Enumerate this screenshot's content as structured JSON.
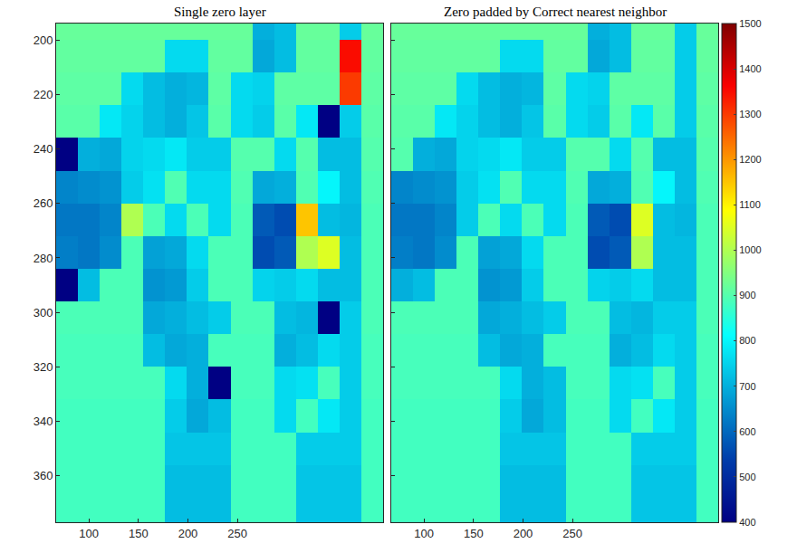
{
  "chart_data": [
    {
      "type": "heatmap",
      "title": "Single zero layer",
      "x": [
        78,
        100,
        122,
        144,
        166,
        188,
        210,
        232,
        254,
        276,
        298,
        320,
        342,
        364,
        386
      ],
      "y": [
        194,
        206,
        218,
        230,
        242,
        254,
        266,
        278,
        290,
        302,
        314,
        326,
        338,
        350,
        362,
        374
      ],
      "z": [
        [
          920,
          920,
          920,
          920,
          920,
          920,
          920,
          920,
          920,
          700,
          720,
          920,
          920,
          740,
          920
        ],
        [
          915,
          915,
          915,
          915,
          915,
          760,
          760,
          915,
          915,
          690,
          720,
          915,
          915,
          1350,
          915
        ],
        [
          910,
          910,
          910,
          760,
          720,
          700,
          710,
          910,
          760,
          750,
          910,
          910,
          910,
          1300,
          910
        ],
        [
          905,
          905,
          780,
          750,
          720,
          700,
          730,
          905,
          760,
          740,
          905,
          780,
          400,
          740,
          905
        ],
        [
          400,
          700,
          690,
          750,
          760,
          780,
          740,
          740,
          900,
          900,
          760,
          900,
          720,
          720,
          900
        ],
        [
          640,
          650,
          660,
          740,
          770,
          895,
          760,
          760,
          895,
          690,
          700,
          895,
          800,
          720,
          895
        ],
        [
          620,
          620,
          640,
          1000,
          890,
          760,
          890,
          760,
          890,
          580,
          560,
          1150,
          720,
          710,
          890
        ],
        [
          630,
          620,
          650,
          890,
          680,
          690,
          760,
          890,
          890,
          560,
          580,
          1000,
          1050,
          720,
          890
        ],
        [
          400,
          720,
          890,
          890,
          660,
          670,
          740,
          890,
          890,
          750,
          740,
          760,
          720,
          720,
          890
        ],
        [
          890,
          890,
          890,
          890,
          690,
          700,
          720,
          740,
          890,
          890,
          720,
          710,
          400,
          740,
          890
        ],
        [
          885,
          885,
          885,
          885,
          720,
          690,
          700,
          885,
          885,
          885,
          700,
          720,
          760,
          740,
          885
        ],
        [
          885,
          885,
          885,
          885,
          885,
          760,
          700,
          400,
          885,
          885,
          760,
          770,
          885,
          740,
          885
        ],
        [
          880,
          880,
          880,
          880,
          880,
          740,
          690,
          720,
          880,
          880,
          760,
          880,
          780,
          740,
          880
        ],
        [
          880,
          880,
          880,
          880,
          880,
          730,
          730,
          730,
          880,
          880,
          880,
          740,
          740,
          740,
          880
        ],
        [
          880,
          880,
          880,
          880,
          880,
          720,
          720,
          720,
          880,
          880,
          880,
          730,
          730,
          730,
          880
        ],
        [
          880,
          880,
          880,
          880,
          880,
          720,
          720,
          720,
          880,
          880,
          880,
          730,
          730,
          730,
          880
        ]
      ],
      "xlim": [
        67,
        397
      ],
      "ylim": [
        194,
        377
      ],
      "xticks": [
        100,
        150,
        200,
        250
      ],
      "yticks": [
        200,
        220,
        240,
        260,
        280,
        300,
        320,
        340,
        360
      ],
      "colorbar_range": [
        400,
        1500
      ]
    },
    {
      "type": "heatmap",
      "title": "Zero padded by Correct nearest neighbor",
      "x": [
        78,
        100,
        122,
        144,
        166,
        188,
        210,
        232,
        254,
        276,
        298,
        320,
        342,
        364,
        386
      ],
      "y": [
        194,
        206,
        218,
        230,
        242,
        254,
        266,
        278,
        290,
        302,
        314,
        326,
        338,
        350,
        362,
        374
      ],
      "z": [
        [
          920,
          920,
          920,
          920,
          920,
          920,
          920,
          920,
          920,
          700,
          720,
          920,
          920,
          740,
          920
        ],
        [
          915,
          915,
          915,
          915,
          915,
          760,
          760,
          915,
          915,
          690,
          720,
          915,
          915,
          740,
          915
        ],
        [
          910,
          910,
          910,
          760,
          720,
          700,
          710,
          910,
          760,
          750,
          910,
          910,
          910,
          740,
          910
        ],
        [
          905,
          905,
          780,
          750,
          720,
          700,
          730,
          905,
          760,
          740,
          905,
          780,
          905,
          740,
          905
        ],
        [
          900,
          700,
          690,
          750,
          760,
          780,
          740,
          740,
          900,
          900,
          760,
          900,
          720,
          720,
          900
        ],
        [
          640,
          650,
          660,
          740,
          770,
          895,
          760,
          760,
          895,
          690,
          700,
          895,
          800,
          720,
          895
        ],
        [
          620,
          620,
          640,
          740,
          890,
          760,
          890,
          760,
          890,
          580,
          560,
          1050,
          720,
          710,
          890
        ],
        [
          630,
          620,
          650,
          890,
          680,
          690,
          760,
          890,
          890,
          560,
          580,
          1000,
          720,
          720,
          890
        ],
        [
          700,
          720,
          890,
          890,
          660,
          670,
          740,
          890,
          890,
          750,
          740,
          760,
          720,
          720,
          890
        ],
        [
          890,
          890,
          890,
          890,
          690,
          700,
          720,
          740,
          890,
          890,
          720,
          710,
          740,
          740,
          890
        ],
        [
          885,
          885,
          885,
          885,
          720,
          690,
          700,
          885,
          885,
          885,
          700,
          720,
          760,
          740,
          885
        ],
        [
          885,
          885,
          885,
          885,
          885,
          760,
          700,
          720,
          885,
          885,
          760,
          770,
          885,
          740,
          885
        ],
        [
          880,
          880,
          880,
          880,
          880,
          740,
          690,
          720,
          880,
          880,
          760,
          880,
          780,
          740,
          880
        ],
        [
          880,
          880,
          880,
          880,
          880,
          730,
          730,
          730,
          880,
          880,
          880,
          740,
          740,
          740,
          880
        ],
        [
          880,
          880,
          880,
          880,
          880,
          720,
          720,
          720,
          880,
          880,
          880,
          730,
          730,
          730,
          880
        ],
        [
          880,
          880,
          880,
          880,
          880,
          720,
          720,
          720,
          880,
          880,
          880,
          730,
          730,
          730,
          880
        ]
      ],
      "xlim": [
        67,
        397
      ],
      "ylim": [
        194,
        377
      ],
      "xticks": [
        100,
        150,
        200,
        250
      ],
      "yticks": [
        200,
        220,
        240,
        260,
        280,
        300,
        320,
        340,
        360
      ],
      "tick_labels": "x",
      "colorbar_range": [
        400,
        1500
      ],
      "colorbar_ticks": [
        400,
        500,
        600,
        700,
        800,
        900,
        1000,
        1100,
        1200,
        1300,
        1400,
        1500
      ]
    }
  ]
}
